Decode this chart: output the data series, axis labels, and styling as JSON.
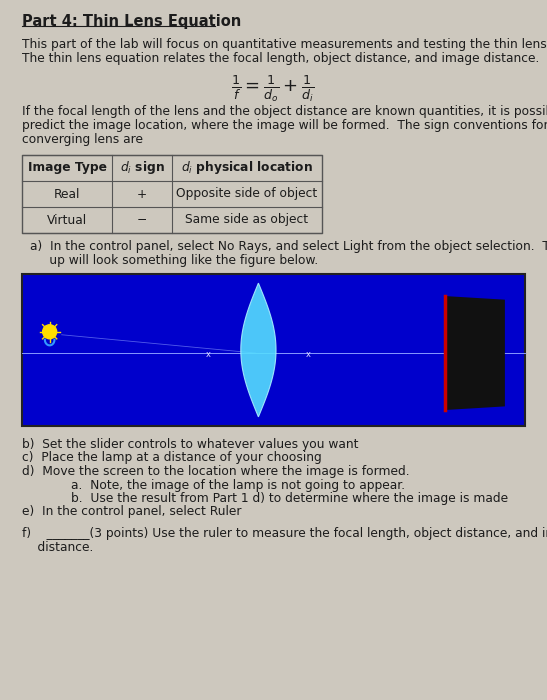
{
  "bg_color": "#cdc8be",
  "title": "Part 4: Thin Lens Equation",
  "intro_text_1": "This part of the lab will focus on quantitative measurements and testing the thin lens equation.",
  "intro_text_2": "The thin lens equation relates the focal length, object distance, and image distance.",
  "paragraph2_1": "If the focal length of the lens and the object distance are known quantities, it is possible to",
  "paragraph2_2": "predict the image location, where the image will be formed.  The sign conventions for a",
  "paragraph2_3": "converging lens are",
  "table_col0_header": "Image Type",
  "table_col1_header": "dⁱ sign",
  "table_col2_header": "dⁱ physical location",
  "table_row0": [
    "Real",
    "+",
    "Opposite side of object"
  ],
  "table_row1": [
    "Virtual",
    "−",
    "Same side as object"
  ],
  "part_a_1": "a)  In the control panel, select No Rays, and select Light from the object selection.  The set",
  "part_a_2": "     up will look something like the figure below.",
  "blue_box_color": "#0000cc",
  "lens_color": "#55ddff",
  "screen_dark": "#111111",
  "screen_red": "#cc0000",
  "lamp_yellow": "#ffdd00",
  "lamp_blue": "#3399ff",
  "axis_color": "#8899ff",
  "marker_color": "#ccccff",
  "part_b": "b)  Set the slider controls to whatever values you want",
  "part_c": "c)  Place the lamp at a distance of your choosing",
  "part_d": "d)  Move the screen to the location where the image is formed.",
  "part_da": "        a.  Note, the image of the lamp is not going to appear.",
  "part_db": "        b.  Use the result from Part 1 d) to determine where the image is made",
  "part_e": "e)  In the control panel, select Ruler",
  "part_f_1": "f)    _______(3 points) Use the ruler to measure the focal length, object distance, and image",
  "part_f_2": "    distance.",
  "fs_title": 10.5,
  "fs_body": 8.8,
  "text_color": "#1c1c1c"
}
